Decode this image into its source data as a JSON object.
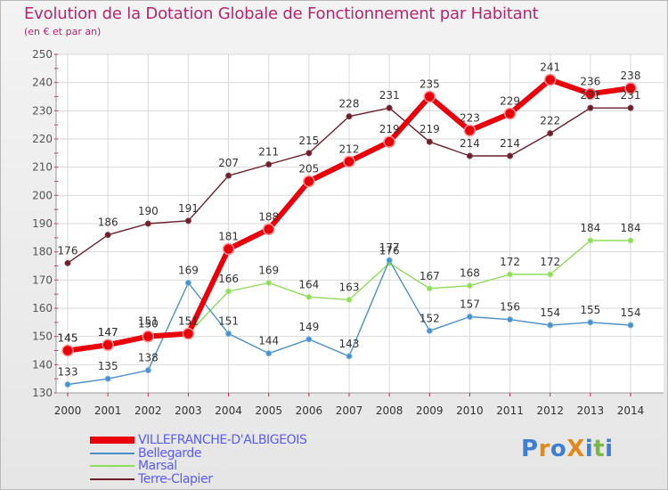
{
  "title": "Evolution de la Dotation Globale de Fonctionnement par Habitant",
  "subtitle": "(en € et par an)",
  "brand": {
    "text": "ProXiti",
    "letters": [
      {
        "ch": "P",
        "color": "#3d7fd0"
      },
      {
        "ch": "r",
        "color": "#e08a1e"
      },
      {
        "ch": "o",
        "color": "#3d7fd0"
      },
      {
        "ch": "X",
        "color": "#e08a1e"
      },
      {
        "ch": "i",
        "color": "#3d7fd0"
      },
      {
        "ch": "t",
        "color": "#7ab648"
      },
      {
        "ch": "i",
        "color": "#3d7fd0"
      }
    ]
  },
  "chart_data": {
    "type": "line",
    "title": "Evolution de la Dotation Globale de Fonctionnement par Habitant",
    "subtitle": "(en € et par an)",
    "xlabel": "",
    "ylabel": "",
    "x": [
      "2000",
      "2001",
      "2002",
      "2003",
      "2004",
      "2005",
      "2006",
      "2007",
      "2008",
      "2009",
      "2010",
      "2011",
      "2012",
      "2013",
      "2014"
    ],
    "ylim": [
      130,
      250
    ],
    "yticks": [
      130,
      140,
      150,
      160,
      170,
      180,
      190,
      200,
      210,
      220,
      230,
      240,
      250
    ],
    "grid": true,
    "legend_position": "bottom-left",
    "series": [
      {
        "name": "VILLEFRANCHE-D'ALBIGEOIS",
        "color": "#e8000b",
        "values": [
          145,
          147,
          150,
          151,
          181,
          188,
          205,
          212,
          219,
          235,
          223,
          229,
          241,
          236,
          238
        ]
      },
      {
        "name": "Bellegarde",
        "color": "#4a90c8",
        "values": [
          133,
          135,
          138,
          169,
          151,
          144,
          149,
          143,
          177,
          152,
          157,
          156,
          154,
          155,
          154
        ]
      },
      {
        "name": "Marsal",
        "color": "#8fdc5a",
        "values": [
          145,
          147,
          151,
          151,
          166,
          169,
          164,
          163,
          176,
          167,
          168,
          172,
          172,
          184,
          184
        ]
      },
      {
        "name": "Terre-Clapier",
        "color": "#6b1f2b",
        "values": [
          176,
          186,
          190,
          191,
          207,
          211,
          215,
          228,
          231,
          219,
          214,
          214,
          222,
          231,
          231
        ]
      }
    ]
  }
}
